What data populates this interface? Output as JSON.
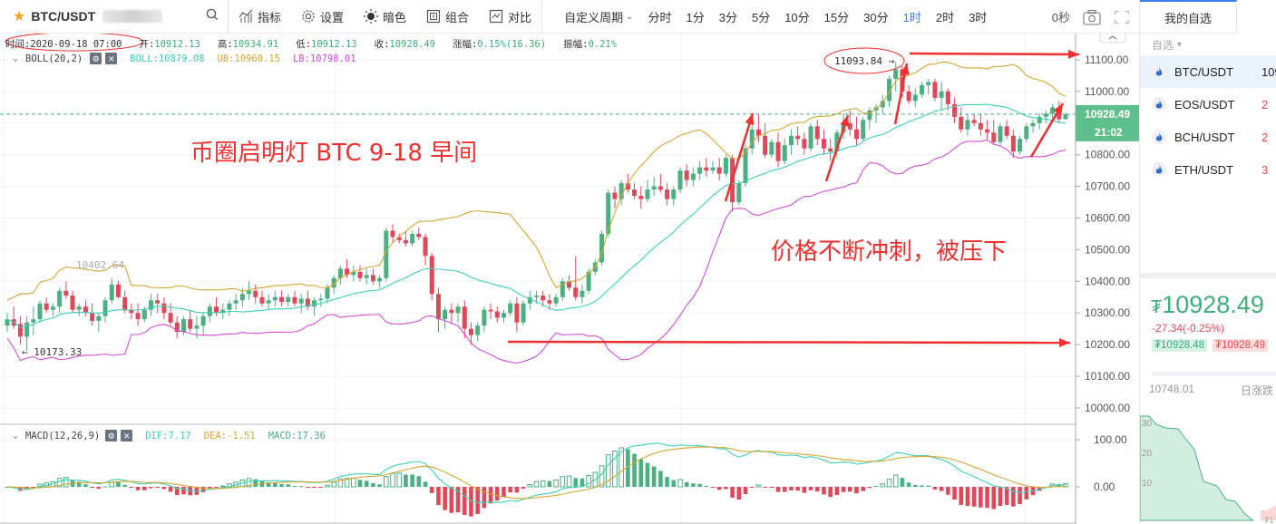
{
  "toolbar": {
    "symbol": "BTC/USDT",
    "tools": [
      {
        "icon": "indicator-icon",
        "label": "指标"
      },
      {
        "icon": "gear-icon",
        "label": "设置"
      },
      {
        "icon": "sun-icon",
        "label": "暗色"
      },
      {
        "icon": "layout-icon",
        "label": "组合"
      },
      {
        "icon": "compare-icon",
        "label": "对比"
      }
    ],
    "custom_period": "自定义周期",
    "periods": [
      "分时",
      "1分",
      "3分",
      "5分",
      "10分",
      "15分",
      "30分",
      "1时",
      "2时",
      "3时"
    ],
    "active_period": "1时",
    "countdown": "0秒"
  },
  "info": {
    "time_label": "时间:",
    "time": "2020-09-18 07:00",
    "open_label": "开:",
    "open": "10912.13",
    "high_label": "高:",
    "high": "10934.91",
    "low_label": "低:",
    "low": "10912.13",
    "close_label": "收:",
    "close": "10928.49",
    "change_label": "涨幅:",
    "change": "0.15%(16.36)",
    "amp_label": "振幅:",
    "amp": "0.21%"
  },
  "boll": {
    "name": "BOLL(20,2)",
    "mid_label": "BOLL:10879.08",
    "ub_label": "UB:10960.15",
    "lb_label": "LB:10798.01",
    "colors": {
      "mid": "#3fd0b4",
      "ub": "#d4a634",
      "lb": "#d24fd0"
    }
  },
  "macd": {
    "name": "MACD(12,26,9)",
    "dif_label": "DIF:7.17",
    "dea_label": "DEA:-1.51",
    "macd_label": "MACD:17.36",
    "axis": [
      "100.00",
      "0.00"
    ]
  },
  "price_axis": {
    "ticks": [
      "11100.00",
      "11000.00",
      "10900.00",
      "10800.00",
      "10700.00",
      "10600.00",
      "10500.00",
      "10400.00",
      "10300.00",
      "10200.00",
      "10100.00",
      "10000.00"
    ],
    "last_price": "10928.49",
    "countdown": "21:02"
  },
  "markers": {
    "high": "11093.84",
    "low": "10173.33",
    "local_high": "10402.64"
  },
  "annotations": {
    "title": "币圈启明灯  BTC  9-18  早间",
    "note": "价格不断冲刺，被压下"
  },
  "colors": {
    "up": "#4caf82",
    "down": "#e0485a",
    "accent": "#3a7ff0",
    "annot": "#f03030"
  },
  "panel": {
    "tab": "我的自选",
    "filter": "自选",
    "coins": [
      {
        "name": "BTC/USDT",
        "price": "109",
        "selected": true
      },
      {
        "name": "EOS/USDT",
        "price": "2",
        "selected": false
      },
      {
        "name": "BCH/USDT",
        "price": "2",
        "selected": false
      },
      {
        "name": "ETH/USDT",
        "price": "3",
        "selected": false
      }
    ],
    "price_currency": "₮",
    "price": "10928.49",
    "change": "-27.34(-0.25%)",
    "bid": "₮10928.48",
    "ask": "₮10928.49",
    "day_low": "10748.01",
    "day_change_label": "日涨跌",
    "depth_ticks": [
      "30",
      "20",
      "10"
    ]
  },
  "chart_data": {
    "type": "candlestick",
    "title": "BTC/USDT 1H",
    "y_range": [
      9980,
      11140
    ],
    "candles": [
      [
        10260,
        10300,
        10240,
        10280
      ],
      [
        10280,
        10320,
        10250,
        10260
      ],
      [
        10265,
        10290,
        10200,
        10225
      ],
      [
        10225,
        10290,
        10180,
        10270
      ],
      [
        10270,
        10320,
        10230,
        10280
      ],
      [
        10280,
        10340,
        10270,
        10330
      ],
      [
        10330,
        10350,
        10300,
        10310
      ],
      [
        10310,
        10330,
        10290,
        10320
      ],
      [
        10320,
        10380,
        10300,
        10370
      ],
      [
        10370,
        10400,
        10345,
        10355
      ],
      [
        10355,
        10370,
        10300,
        10310
      ],
      [
        10310,
        10330,
        10290,
        10320
      ],
      [
        10320,
        10340,
        10290,
        10300
      ],
      [
        10300,
        10330,
        10260,
        10275
      ],
      [
        10275,
        10300,
        10240,
        10290
      ],
      [
        10290,
        10350,
        10270,
        10340
      ],
      [
        10340,
        10410,
        10330,
        10390
      ],
      [
        10390,
        10402,
        10345,
        10350
      ],
      [
        10350,
        10370,
        10300,
        10310
      ],
      [
        10310,
        10330,
        10280,
        10300
      ],
      [
        10300,
        10330,
        10260,
        10280
      ],
      [
        10280,
        10320,
        10270,
        10310
      ],
      [
        10310,
        10360,
        10290,
        10340
      ],
      [
        10340,
        10360,
        10300,
        10330
      ],
      [
        10330,
        10350,
        10280,
        10300
      ],
      [
        10300,
        10330,
        10260,
        10270
      ],
      [
        10270,
        10290,
        10220,
        10240
      ],
      [
        10240,
        10290,
        10230,
        10280
      ],
      [
        10280,
        10310,
        10240,
        10250
      ],
      [
        10250,
        10290,
        10220,
        10260
      ],
      [
        10260,
        10300,
        10230,
        10290
      ],
      [
        10290,
        10330,
        10270,
        10320
      ],
      [
        10320,
        10350,
        10290,
        10300
      ],
      [
        10300,
        10330,
        10280,
        10310
      ],
      [
        10310,
        10340,
        10290,
        10330
      ],
      [
        10330,
        10360,
        10310,
        10340
      ],
      [
        10340,
        10380,
        10320,
        10360
      ],
      [
        10360,
        10400,
        10340,
        10370
      ],
      [
        10370,
        10390,
        10330,
        10350
      ],
      [
        10350,
        10370,
        10320,
        10330
      ],
      [
        10330,
        10360,
        10310,
        10340
      ],
      [
        10340,
        10370,
        10320,
        10350
      ],
      [
        10350,
        10370,
        10320,
        10335
      ],
      [
        10335,
        10360,
        10320,
        10350
      ],
      [
        10350,
        10370,
        10320,
        10330
      ],
      [
        10330,
        10360,
        10300,
        10345
      ],
      [
        10345,
        10370,
        10310,
        10320
      ],
      [
        10320,
        10350,
        10290,
        10340
      ],
      [
        10340,
        10360,
        10320,
        10345
      ],
      [
        10345,
        10390,
        10330,
        10380
      ],
      [
        10380,
        10420,
        10360,
        10410
      ],
      [
        10410,
        10450,
        10390,
        10440
      ],
      [
        10440,
        10470,
        10410,
        10420
      ],
      [
        10420,
        10450,
        10400,
        10430
      ],
      [
        10430,
        10450,
        10400,
        10410
      ],
      [
        10410,
        10440,
        10390,
        10420
      ],
      [
        10420,
        10440,
        10390,
        10400
      ],
      [
        10400,
        10420,
        10380,
        10410
      ],
      [
        10410,
        10570,
        10400,
        10560
      ],
      [
        10560,
        10580,
        10520,
        10540
      ],
      [
        10540,
        10550,
        10520,
        10530
      ],
      [
        10530,
        10560,
        10510,
        10520
      ],
      [
        10520,
        10560,
        10510,
        10550
      ],
      [
        10550,
        10570,
        10530,
        10540
      ],
      [
        10540,
        10550,
        10450,
        10480
      ],
      [
        10480,
        10490,
        10340,
        10360
      ],
      [
        10360,
        10380,
        10240,
        10280
      ],
      [
        10280,
        10320,
        10250,
        10310
      ],
      [
        10310,
        10330,
        10270,
        10300
      ],
      [
        10300,
        10330,
        10270,
        10320
      ],
      [
        10320,
        10340,
        10220,
        10250
      ],
      [
        10250,
        10270,
        10200,
        10230
      ],
      [
        10230,
        10270,
        10210,
        10260
      ],
      [
        10260,
        10320,
        10240,
        10310
      ],
      [
        10310,
        10330,
        10280,
        10305
      ],
      [
        10305,
        10320,
        10270,
        10285
      ],
      [
        10285,
        10310,
        10270,
        10300
      ],
      [
        10300,
        10340,
        10290,
        10330
      ],
      [
        10330,
        10350,
        10240,
        10270
      ],
      [
        10270,
        10340,
        10260,
        10330
      ],
      [
        10330,
        10370,
        10310,
        10350
      ],
      [
        10350,
        10370,
        10330,
        10355
      ],
      [
        10355,
        10370,
        10320,
        10340
      ],
      [
        10340,
        10360,
        10310,
        10330
      ],
      [
        10330,
        10360,
        10320,
        10350
      ],
      [
        10350,
        10410,
        10340,
        10400
      ],
      [
        10400,
        10420,
        10370,
        10380
      ],
      [
        10380,
        10480,
        10340,
        10350
      ],
      [
        10350,
        10390,
        10330,
        10370
      ],
      [
        10370,
        10440,
        10360,
        10430
      ],
      [
        10430,
        10470,
        10420,
        10460
      ],
      [
        10460,
        10560,
        10450,
        10550
      ],
      [
        10550,
        10690,
        10540,
        10680
      ],
      [
        10680,
        10700,
        10630,
        10660
      ],
      [
        10660,
        10720,
        10640,
        10710
      ],
      [
        10710,
        10740,
        10680,
        10690
      ],
      [
        10690,
        10710,
        10660,
        10670
      ],
      [
        10670,
        10700,
        10630,
        10660
      ],
      [
        10660,
        10720,
        10650,
        10690
      ],
      [
        10690,
        10730,
        10670,
        10700
      ],
      [
        10700,
        10740,
        10680,
        10690
      ],
      [
        10690,
        10710,
        10640,
        10660
      ],
      [
        10660,
        10700,
        10640,
        10690
      ],
      [
        10690,
        10760,
        10680,
        10750
      ],
      [
        10750,
        10770,
        10700,
        10720
      ],
      [
        10720,
        10760,
        10700,
        10740
      ],
      [
        10740,
        10780,
        10720,
        10760
      ],
      [
        10760,
        10790,
        10730,
        10750
      ],
      [
        10750,
        10780,
        10740,
        10760
      ],
      [
        10760,
        10790,
        10720,
        10740
      ],
      [
        10740,
        10800,
        10730,
        10790
      ],
      [
        10790,
        10800,
        10620,
        10650
      ],
      [
        10650,
        10720,
        10640,
        10710
      ],
      [
        10710,
        10830,
        10700,
        10820
      ],
      [
        10820,
        10900,
        10800,
        10880
      ],
      [
        10880,
        10930,
        10840,
        10860
      ],
      [
        10860,
        10900,
        10790,
        10800
      ],
      [
        10800,
        10850,
        10790,
        10840
      ],
      [
        10840,
        10870,
        10760,
        10780
      ],
      [
        10780,
        10850,
        10770,
        10830
      ],
      [
        10830,
        10880,
        10800,
        10860
      ],
      [
        10860,
        10890,
        10830,
        10850
      ],
      [
        10850,
        10870,
        10800,
        10820
      ],
      [
        10820,
        10900,
        10810,
        10890
      ],
      [
        10890,
        10910,
        10830,
        10850
      ],
      [
        10850,
        10880,
        10800,
        10820
      ],
      [
        10820,
        10850,
        10780,
        10810
      ],
      [
        10810,
        10880,
        10790,
        10870
      ],
      [
        10870,
        10930,
        10850,
        10900
      ],
      [
        10900,
        10940,
        10860,
        10880
      ],
      [
        10880,
        10920,
        10830,
        10850
      ],
      [
        10850,
        10920,
        10840,
        10910
      ],
      [
        10910,
        10950,
        10880,
        10940
      ],
      [
        10940,
        10960,
        10900,
        10950
      ],
      [
        10950,
        10990,
        10930,
        10970
      ],
      [
        10970,
        11050,
        10950,
        11040
      ],
      [
        11040,
        11094,
        11000,
        11070
      ],
      [
        11070,
        11080,
        10980,
        11000
      ],
      [
        11000,
        11020,
        10960,
        10970
      ],
      [
        10970,
        11010,
        10950,
        10990
      ],
      [
        10990,
        11030,
        10980,
        11020
      ],
      [
        11020,
        11040,
        10990,
        11030
      ],
      [
        11030,
        11040,
        10970,
        10980
      ],
      [
        10980,
        11030,
        10940,
        11000
      ],
      [
        11000,
        11010,
        10940,
        10960
      ],
      [
        10960,
        10980,
        10900,
        10920
      ],
      [
        10920,
        10950,
        10870,
        10880
      ],
      [
        10880,
        10930,
        10860,
        10910
      ],
      [
        10910,
        10930,
        10890,
        10900
      ],
      [
        10900,
        10930,
        10860,
        10880
      ],
      [
        10880,
        10910,
        10850,
        10870
      ],
      [
        10870,
        10910,
        10830,
        10840
      ],
      [
        10840,
        10900,
        10830,
        10890
      ],
      [
        10890,
        10910,
        10850,
        10860
      ],
      [
        10860,
        10880,
        10790,
        10810
      ],
      [
        10810,
        10860,
        10800,
        10850
      ],
      [
        10850,
        10900,
        10840,
        10890
      ],
      [
        10890,
        10910,
        10870,
        10900
      ],
      [
        10900,
        10930,
        10880,
        10920
      ],
      [
        10920,
        10940,
        10900,
        10930
      ],
      [
        10930,
        10960,
        10910,
        10950
      ],
      [
        10950,
        10970,
        10900,
        10912
      ],
      [
        10912,
        10935,
        10912,
        10928
      ]
    ]
  }
}
